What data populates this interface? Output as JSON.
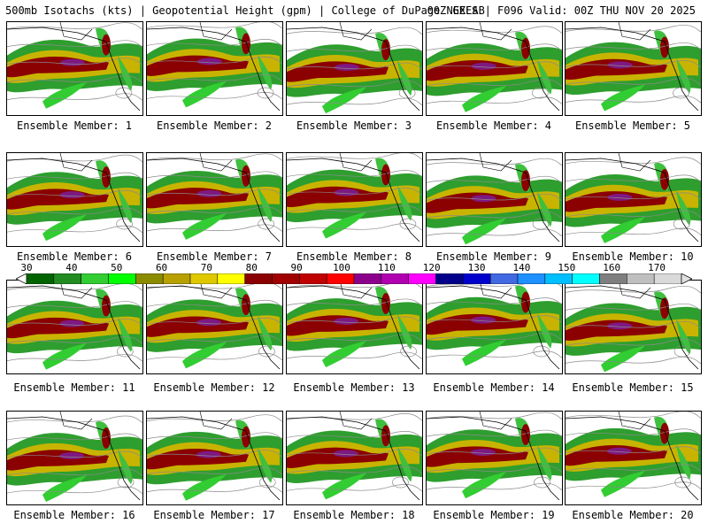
{
  "header": {
    "left": "500mb Isotachs (kts) | Geopotential Height (gpm) | College of DuPage NEXLAB",
    "right": "00Z GEFS | F096 Valid: 00Z THU NOV 20 2025"
  },
  "members": [
    {
      "label": "Ensemble Member: 1"
    },
    {
      "label": "Ensemble Member: 2"
    },
    {
      "label": "Ensemble Member: 3"
    },
    {
      "label": "Ensemble Member: 4"
    },
    {
      "label": "Ensemble Member: 5"
    },
    {
      "label": "Ensemble Member: 6"
    },
    {
      "label": "Ensemble Member: 7"
    },
    {
      "label": "Ensemble Member: 8"
    },
    {
      "label": "Ensemble Member: 9"
    },
    {
      "label": "Ensemble Member: 10"
    },
    {
      "label": "Ensemble Member: 11"
    },
    {
      "label": "Ensemble Member: 12"
    },
    {
      "label": "Ensemble Member: 13"
    },
    {
      "label": "Ensemble Member: 14"
    },
    {
      "label": "Ensemble Member: 15"
    },
    {
      "label": "Ensemble Member: 16"
    },
    {
      "label": "Ensemble Member: 17"
    },
    {
      "label": "Ensemble Member: 18"
    },
    {
      "label": "Ensemble Member: 19"
    },
    {
      "label": "Ensemble Member: 20"
    }
  ],
  "colorbar": {
    "labels": [
      "30",
      "40",
      "50",
      "60",
      "70",
      "80",
      "90",
      "100",
      "110",
      "120",
      "130",
      "140",
      "150",
      "160",
      "170"
    ],
    "colors": [
      "#006400",
      "#228b22",
      "#32cd32",
      "#00ff00",
      "#8b8b00",
      "#b8a000",
      "#e0c800",
      "#ffff00",
      "#8b0000",
      "#a00000",
      "#c00000",
      "#ff0000",
      "#8b008b",
      "#b000b0",
      "#ff00ff",
      "#00008b",
      "#0000cd",
      "#4169e1",
      "#1e90ff",
      "#00bfff",
      "#00ffff",
      "#7f7f7f",
      "#bfbfbf",
      "#d9d9d9"
    ]
  }
}
